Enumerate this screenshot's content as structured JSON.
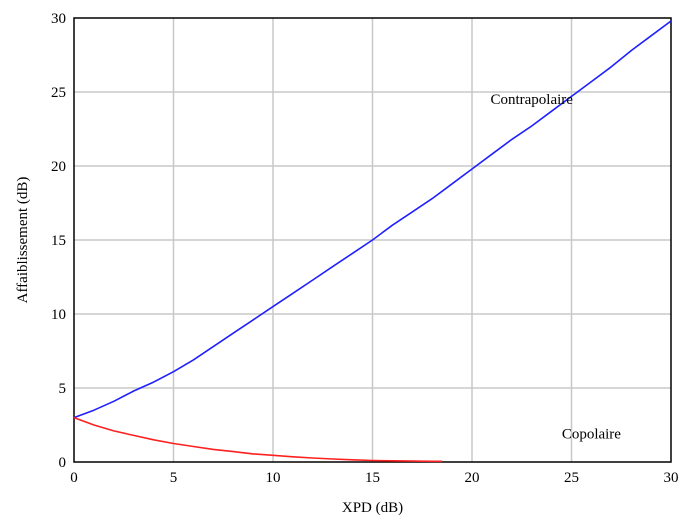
{
  "chart_data": {
    "type": "line",
    "xlabel": "XPD (dB)",
    "ylabel": "Affaiblissement (dB)",
    "xlim": [
      0,
      30
    ],
    "ylim": [
      0,
      30
    ],
    "xticks": [
      "0",
      "5",
      "10",
      "15",
      "20",
      "25",
      "30"
    ],
    "yticks": [
      "0",
      "5",
      "10",
      "15",
      "20",
      "25",
      "30"
    ],
    "grid": true,
    "series": [
      {
        "name": "Contrapolaire",
        "color": "#2020ff",
        "x": [
          0,
          1,
          2,
          3,
          4,
          5,
          6,
          7,
          8,
          9,
          10,
          11,
          12,
          13,
          14,
          15,
          16,
          17,
          18,
          19,
          20,
          21,
          22,
          23,
          24,
          25,
          26,
          27,
          28,
          29,
          30
        ],
        "y": [
          3.0,
          3.5,
          4.1,
          4.8,
          5.4,
          6.1,
          6.9,
          7.8,
          8.7,
          9.6,
          10.5,
          11.4,
          12.3,
          13.2,
          14.1,
          15.0,
          16.0,
          16.9,
          17.8,
          18.8,
          19.8,
          20.8,
          21.8,
          22.7,
          23.7,
          24.7,
          25.7,
          26.7,
          27.8,
          28.8,
          29.8
        ]
      },
      {
        "name": "Copolaire",
        "color": "#ff2020",
        "x": [
          0,
          1,
          2,
          3,
          4,
          5,
          6,
          7,
          8,
          9,
          10,
          11,
          12,
          13,
          14,
          15,
          16,
          17,
          18,
          18.5
        ],
        "y": [
          3.0,
          2.5,
          2.1,
          1.8,
          1.5,
          1.25,
          1.05,
          0.85,
          0.7,
          0.55,
          0.45,
          0.35,
          0.27,
          0.2,
          0.15,
          0.1,
          0.08,
          0.06,
          0.05,
          0.05
        ]
      }
    ],
    "annotations": [
      {
        "text": "Contrapolaire",
        "x": 23,
        "y": 24.2
      },
      {
        "text": "Copolaire",
        "x": 26,
        "y": 1.6
      }
    ]
  }
}
